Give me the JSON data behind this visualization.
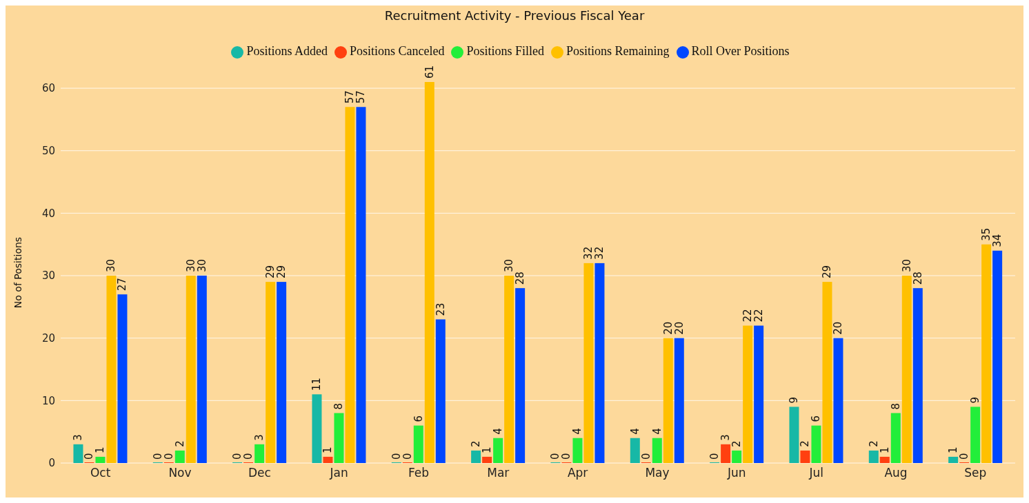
{
  "chart_data": {
    "type": "bar",
    "title": "Recruitment Activity - Previous Fiscal Year",
    "ylabel": "No of Positions",
    "categories": [
      "Oct",
      "Nov",
      "Dec",
      "Jan",
      "Feb",
      "Mar",
      "Apr",
      "May",
      "Jun",
      "Jul",
      "Aug",
      "Sep"
    ],
    "series": [
      {
        "name": "Positions Added",
        "color": "#17b8a6",
        "values": [
          3,
          0,
          0,
          11,
          0,
          2,
          0,
          4,
          0,
          9,
          2,
          1
        ]
      },
      {
        "name": "Positions Canceled",
        "color": "#ff4010",
        "values": [
          0,
          0,
          0,
          1,
          0,
          1,
          0,
          0,
          3,
          2,
          1,
          0
        ]
      },
      {
        "name": "Positions Filled",
        "color": "#22ee3a",
        "values": [
          1,
          2,
          3,
          8,
          6,
          4,
          4,
          4,
          2,
          6,
          8,
          9
        ]
      },
      {
        "name": "Positions Remaining",
        "color": "#ffc000",
        "values": [
          30,
          30,
          29,
          57,
          61,
          30,
          32,
          20,
          22,
          29,
          30,
          35
        ]
      },
      {
        "name": "Roll Over Positions",
        "color": "#0047ff",
        "values": [
          27,
          30,
          29,
          57,
          23,
          28,
          32,
          20,
          22,
          20,
          28,
          34
        ]
      }
    ],
    "ylim": [
      0,
      61
    ],
    "yticks": [
      0,
      10,
      20,
      30,
      40,
      50,
      60
    ],
    "grid": "y",
    "legend": "top",
    "data_labels": true
  }
}
